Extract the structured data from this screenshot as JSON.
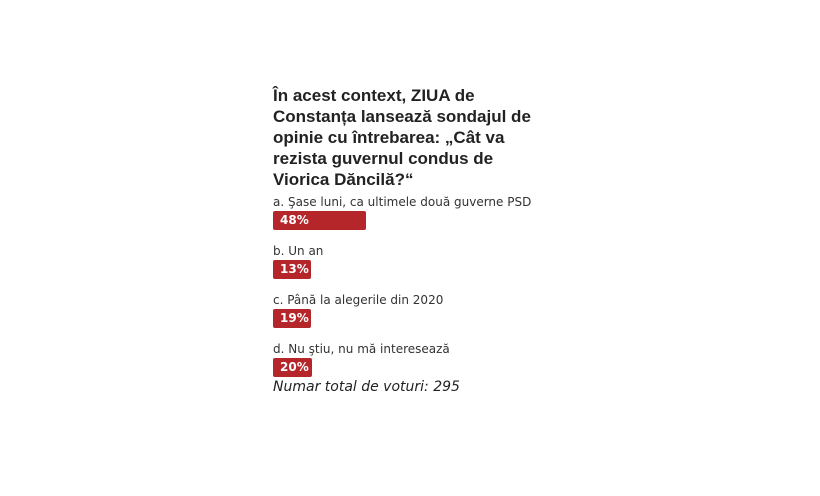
{
  "poll": {
    "question": "În acest context, ZIUA de Constanța lansează sondajul de opinie cu întrebarea: „Cât va rezista guvernul condus de Viorica Dăncilă?“",
    "options": [
      {
        "label": "a. Şase luni, ca ultimele două guverne PSD",
        "percent_label": "48%",
        "percent": 48
      },
      {
        "label": "b. Un an",
        "percent_label": "13%",
        "percent": 13
      },
      {
        "label": "c. Până la alegerile din 2020",
        "percent_label": "19%",
        "percent": 19
      },
      {
        "label": "d. Nu ştiu, nu mă interesează",
        "percent_label": "20%",
        "percent": 20
      }
    ],
    "total_votes_text": "Numar total de voturi: 295",
    "bar_color": "#b5262b"
  }
}
